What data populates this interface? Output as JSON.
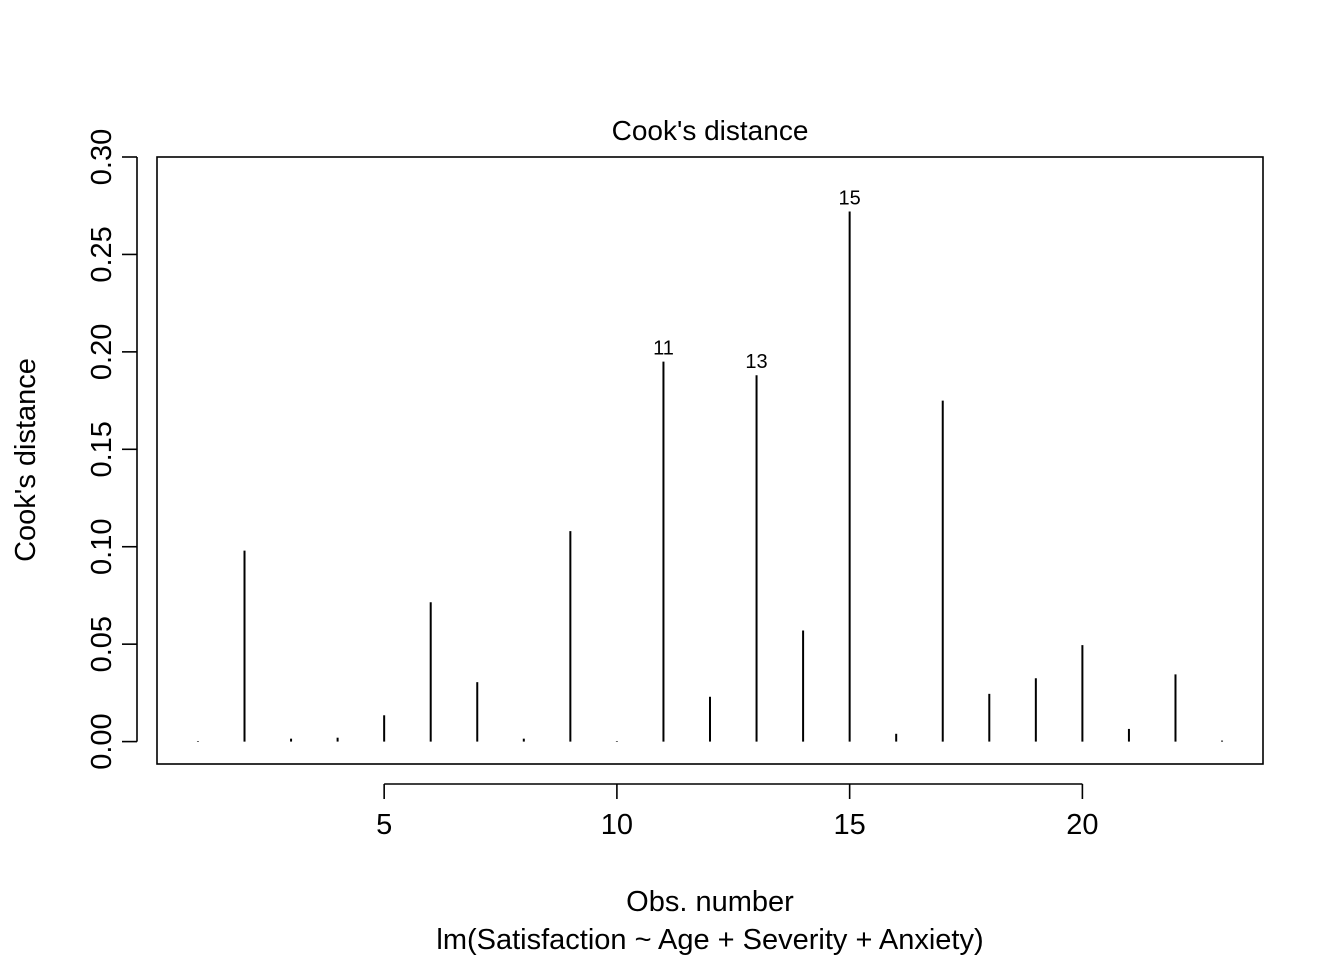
{
  "chart_data": {
    "type": "bar",
    "style": "vertical-lines",
    "title": "Cook's distance",
    "xlabel": "Obs. number",
    "sublabel": "lm(Satisfaction ~ Age + Severity + Anxiety)",
    "ylabel": "Cook's distance",
    "x": [
      1,
      2,
      3,
      4,
      5,
      6,
      7,
      8,
      9,
      10,
      11,
      12,
      13,
      14,
      15,
      16,
      17,
      18,
      19,
      20,
      21,
      22,
      23
    ],
    "values": [
      0.0003,
      0.098,
      0.0015,
      0.002,
      0.0135,
      0.0715,
      0.0305,
      0.0015,
      0.108,
      0.0003,
      0.195,
      0.023,
      0.188,
      0.057,
      0.272,
      0.004,
      0.175,
      0.0245,
      0.0325,
      0.0495,
      0.0065,
      0.0345,
      0.0005
    ],
    "labeled_points": [
      {
        "x": 11,
        "label": "11"
      },
      {
        "x": 13,
        "label": "13"
      },
      {
        "x": 15,
        "label": "15"
      }
    ],
    "xlim": [
      0.12,
      23.88
    ],
    "ylim": [
      -0.0115,
      0.3
    ],
    "xticks": [
      5,
      10,
      15,
      20
    ],
    "xtick_labels": [
      "5",
      "10",
      "15",
      "20"
    ],
    "yticks": [
      0.0,
      0.05,
      0.1,
      0.15,
      0.2,
      0.25,
      0.3
    ],
    "ytick_labels": [
      "0.00",
      "0.05",
      "0.10",
      "0.15",
      "0.20",
      "0.25",
      "0.30"
    ],
    "grid": false,
    "color": "#000000"
  }
}
